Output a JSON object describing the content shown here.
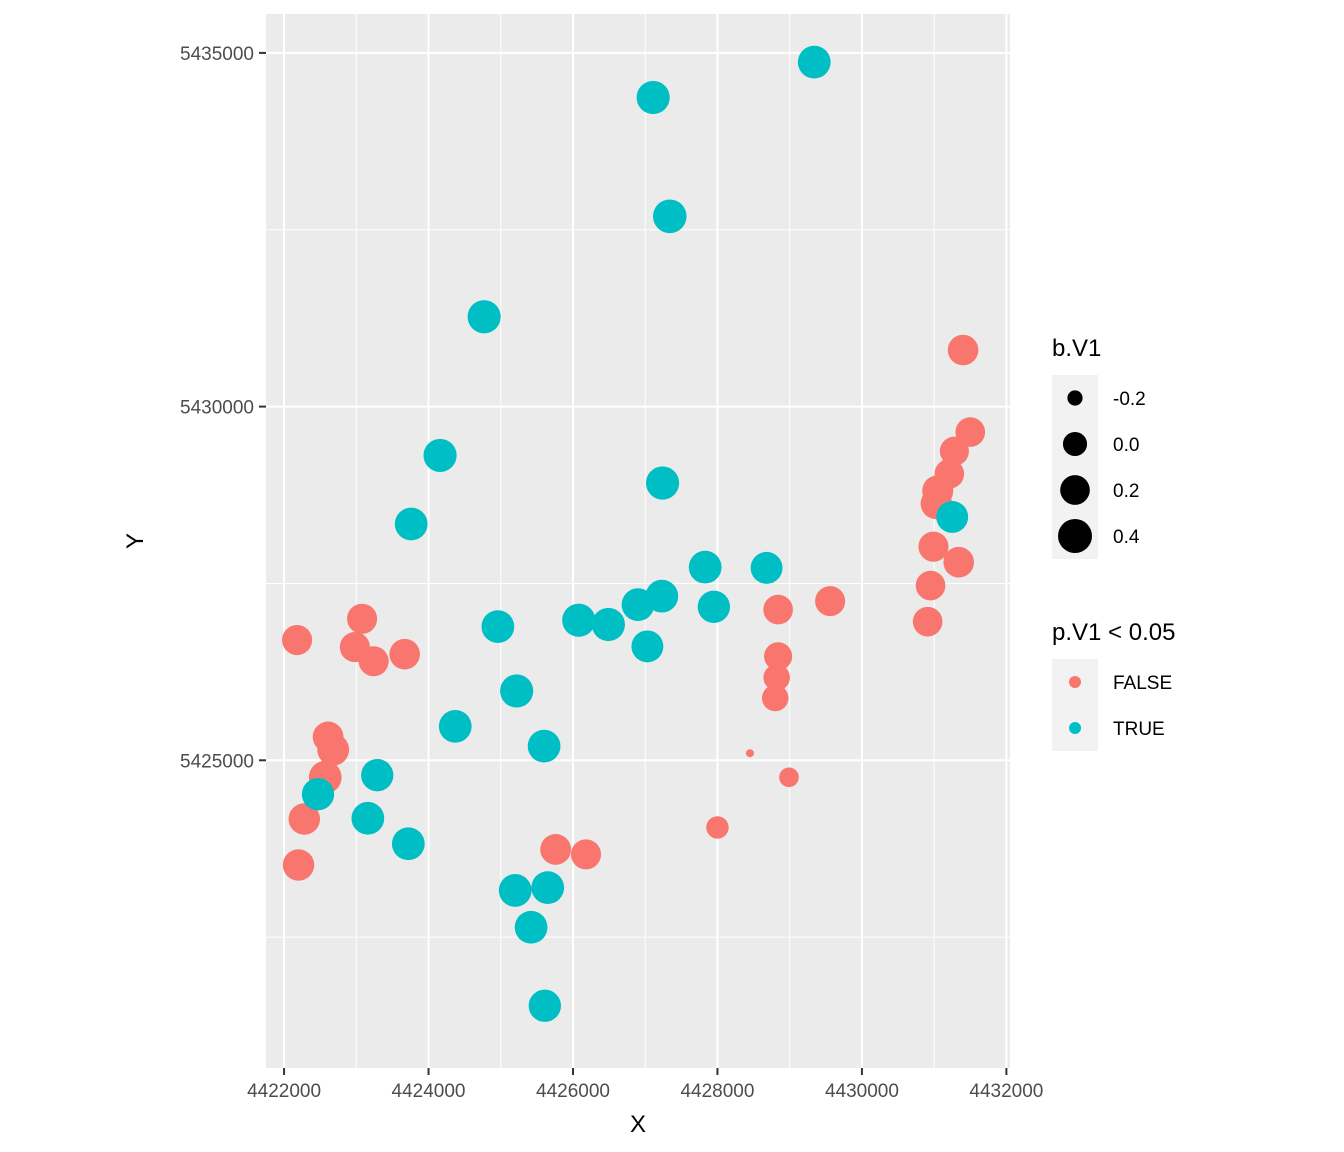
{
  "chart_data": {
    "type": "scatter",
    "title": "",
    "xlabel": "X",
    "ylabel": "Y",
    "xlim": [
      4421750,
      4432050
    ],
    "ylim": [
      5420650,
      5435550
    ],
    "x_ticks": [
      4422000,
      4424000,
      4426000,
      4428000,
      4430000,
      4432000
    ],
    "x_tick_labels": [
      "4422000",
      "4424000",
      "4426000",
      "4428000",
      "4430000",
      "4432000"
    ],
    "y_ticks": [
      5425000,
      5430000,
      5435000
    ],
    "y_tick_labels": [
      "5425000",
      "5430000",
      "5435000"
    ],
    "grid": true,
    "legend_placement": "right",
    "size_legend": {
      "title": "b.V1",
      "values": [
        -0.2,
        0.0,
        0.2,
        0.4
      ],
      "labels": [
        "-0.2",
        "0.0",
        "0.2",
        "0.4"
      ]
    },
    "color_legend": {
      "title": "p.V1 < 0.05",
      "entries": [
        {
          "label": "FALSE",
          "color": "#F8766D"
        },
        {
          "label": "TRUE",
          "color": "#00BFC4"
        }
      ]
    },
    "series": [
      {
        "name": "FALSE",
        "color": "#F8766D",
        "points": [
          {
            "x": 4422180,
            "y": 5426700,
            "b": 0.22
          },
          {
            "x": 4423080,
            "y": 5427000,
            "b": 0.22
          },
          {
            "x": 4422980,
            "y": 5426600,
            "b": 0.22
          },
          {
            "x": 4423240,
            "y": 5426400,
            "b": 0.22
          },
          {
            "x": 4423670,
            "y": 5426500,
            "b": 0.24
          },
          {
            "x": 4422610,
            "y": 5425330,
            "b": 0.25
          },
          {
            "x": 4422680,
            "y": 5425150,
            "b": 0.3
          },
          {
            "x": 4422570,
            "y": 5424760,
            "b": 0.34
          },
          {
            "x": 4422280,
            "y": 5424170,
            "b": 0.28
          },
          {
            "x": 4422200,
            "y": 5423520,
            "b": 0.28
          },
          {
            "x": 4425760,
            "y": 5423740,
            "b": 0.25
          },
          {
            "x": 4426180,
            "y": 5423670,
            "b": 0.22
          },
          {
            "x": 4428000,
            "y": 5424050,
            "b": -0.05
          },
          {
            "x": 4428450,
            "y": 5425100,
            "b": -0.25
          },
          {
            "x": 4428990,
            "y": 5424760,
            "b": -0.12
          },
          {
            "x": 4428840,
            "y": 5427130,
            "b": 0.2
          },
          {
            "x": 4428840,
            "y": 5426470,
            "b": 0.14
          },
          {
            "x": 4428820,
            "y": 5426170,
            "b": 0.08
          },
          {
            "x": 4428800,
            "y": 5425880,
            "b": 0.08
          },
          {
            "x": 4429560,
            "y": 5427250,
            "b": 0.22
          },
          {
            "x": 4430910,
            "y": 5426960,
            "b": 0.2
          },
          {
            "x": 4430950,
            "y": 5427470,
            "b": 0.2
          },
          {
            "x": 4430990,
            "y": 5428020,
            "b": 0.22
          },
          {
            "x": 4431030,
            "y": 5428630,
            "b": 0.28
          },
          {
            "x": 4431050,
            "y": 5428810,
            "b": 0.26
          },
          {
            "x": 4431210,
            "y": 5429050,
            "b": 0.2
          },
          {
            "x": 4431280,
            "y": 5429370,
            "b": 0.18
          },
          {
            "x": 4431340,
            "y": 5427800,
            "b": 0.24
          },
          {
            "x": 4431500,
            "y": 5429640,
            "b": 0.2
          },
          {
            "x": 4431400,
            "y": 5430800,
            "b": 0.24
          }
        ]
      },
      {
        "name": "TRUE",
        "color": "#00BFC4",
        "points": [
          {
            "x": 4427110,
            "y": 5434370,
            "b": 0.36
          },
          {
            "x": 4427340,
            "y": 5432690,
            "b": 0.38
          },
          {
            "x": 4429340,
            "y": 5434870,
            "b": 0.34
          },
          {
            "x": 4424770,
            "y": 5431270,
            "b": 0.36
          },
          {
            "x": 4424160,
            "y": 5429310,
            "b": 0.36
          },
          {
            "x": 4423760,
            "y": 5428340,
            "b": 0.34
          },
          {
            "x": 4427240,
            "y": 5428920,
            "b": 0.36
          },
          {
            "x": 4427830,
            "y": 5427730,
            "b": 0.34
          },
          {
            "x": 4428680,
            "y": 5427720,
            "b": 0.3
          },
          {
            "x": 4427950,
            "y": 5427170,
            "b": 0.32
          },
          {
            "x": 4427230,
            "y": 5427320,
            "b": 0.34
          },
          {
            "x": 4426900,
            "y": 5427200,
            "b": 0.34
          },
          {
            "x": 4426080,
            "y": 5426980,
            "b": 0.36
          },
          {
            "x": 4426490,
            "y": 5426920,
            "b": 0.36
          },
          {
            "x": 4427030,
            "y": 5426610,
            "b": 0.3
          },
          {
            "x": 4424960,
            "y": 5426890,
            "b": 0.34
          },
          {
            "x": 4425220,
            "y": 5425980,
            "b": 0.36
          },
          {
            "x": 4424370,
            "y": 5425480,
            "b": 0.34
          },
          {
            "x": 4425600,
            "y": 5425200,
            "b": 0.34
          },
          {
            "x": 4423290,
            "y": 5424790,
            "b": 0.32
          },
          {
            "x": 4422470,
            "y": 5424520,
            "b": 0.32
          },
          {
            "x": 4423160,
            "y": 5424180,
            "b": 0.34
          },
          {
            "x": 4423720,
            "y": 5423820,
            "b": 0.34
          },
          {
            "x": 4425200,
            "y": 5423160,
            "b": 0.34
          },
          {
            "x": 4425650,
            "y": 5423200,
            "b": 0.34
          },
          {
            "x": 4425420,
            "y": 5422640,
            "b": 0.34
          },
          {
            "x": 4425610,
            "y": 5421530,
            "b": 0.32
          },
          {
            "x": 4431250,
            "y": 5428440,
            "b": 0.3
          }
        ]
      }
    ]
  }
}
